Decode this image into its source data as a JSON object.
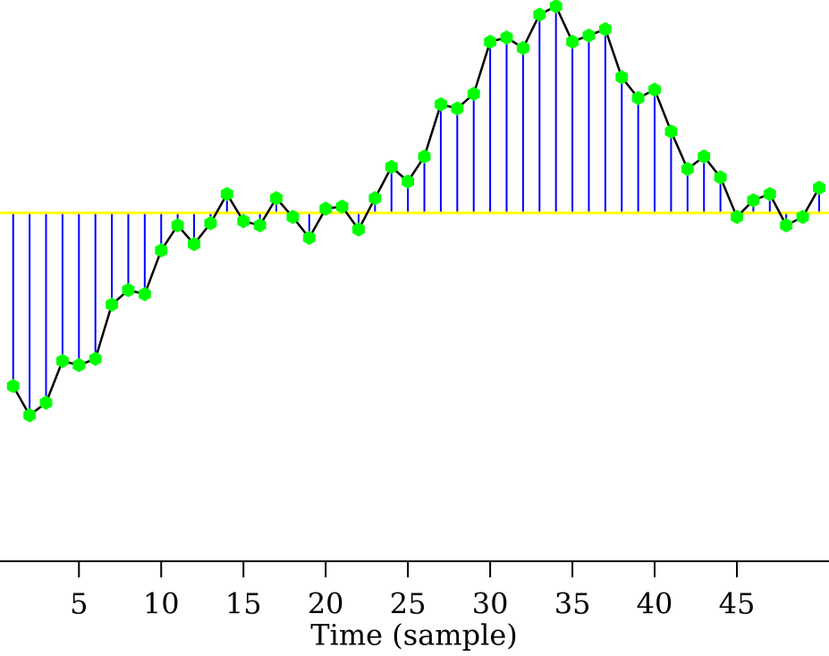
{
  "chart_data": {
    "type": "stem",
    "x_label": "Time (sample)",
    "x": [
      1,
      2,
      3,
      4,
      5,
      6,
      7,
      8,
      9,
      10,
      11,
      12,
      13,
      14,
      15,
      16,
      17,
      18,
      19,
      20,
      21,
      22,
      23,
      24,
      25,
      26,
      27,
      28,
      29,
      30,
      31,
      32,
      33,
      34,
      35,
      36,
      37,
      38,
      39,
      40,
      41,
      42,
      43,
      44,
      45,
      46,
      47,
      48,
      49,
      50
    ],
    "values": [
      -0.83,
      -0.97,
      -0.91,
      -0.71,
      -0.73,
      -0.7,
      -0.44,
      -0.37,
      -0.39,
      -0.18,
      -0.06,
      -0.15,
      -0.05,
      0.09,
      -0.04,
      -0.06,
      0.07,
      -0.02,
      -0.12,
      0.02,
      0.03,
      -0.08,
      0.07,
      0.22,
      0.15,
      0.27,
      0.52,
      0.5,
      0.57,
      0.82,
      0.84,
      0.79,
      0.95,
      0.99,
      0.82,
      0.85,
      0.88,
      0.65,
      0.55,
      0.59,
      0.39,
      0.21,
      0.27,
      0.17,
      -0.02,
      0.06,
      0.09,
      -0.06,
      -0.02,
      0.12
    ],
    "stem_color": "#0000ff",
    "line_color": "#000000",
    "marker_color": "#00ff00",
    "baseline_color": "#ffff00",
    "xlim": [
      0.2,
      50.6
    ],
    "xticks": [
      5,
      10,
      15,
      20,
      25,
      30,
      35,
      40,
      45
    ],
    "ylim": [
      -1.67,
      1.02
    ]
  }
}
